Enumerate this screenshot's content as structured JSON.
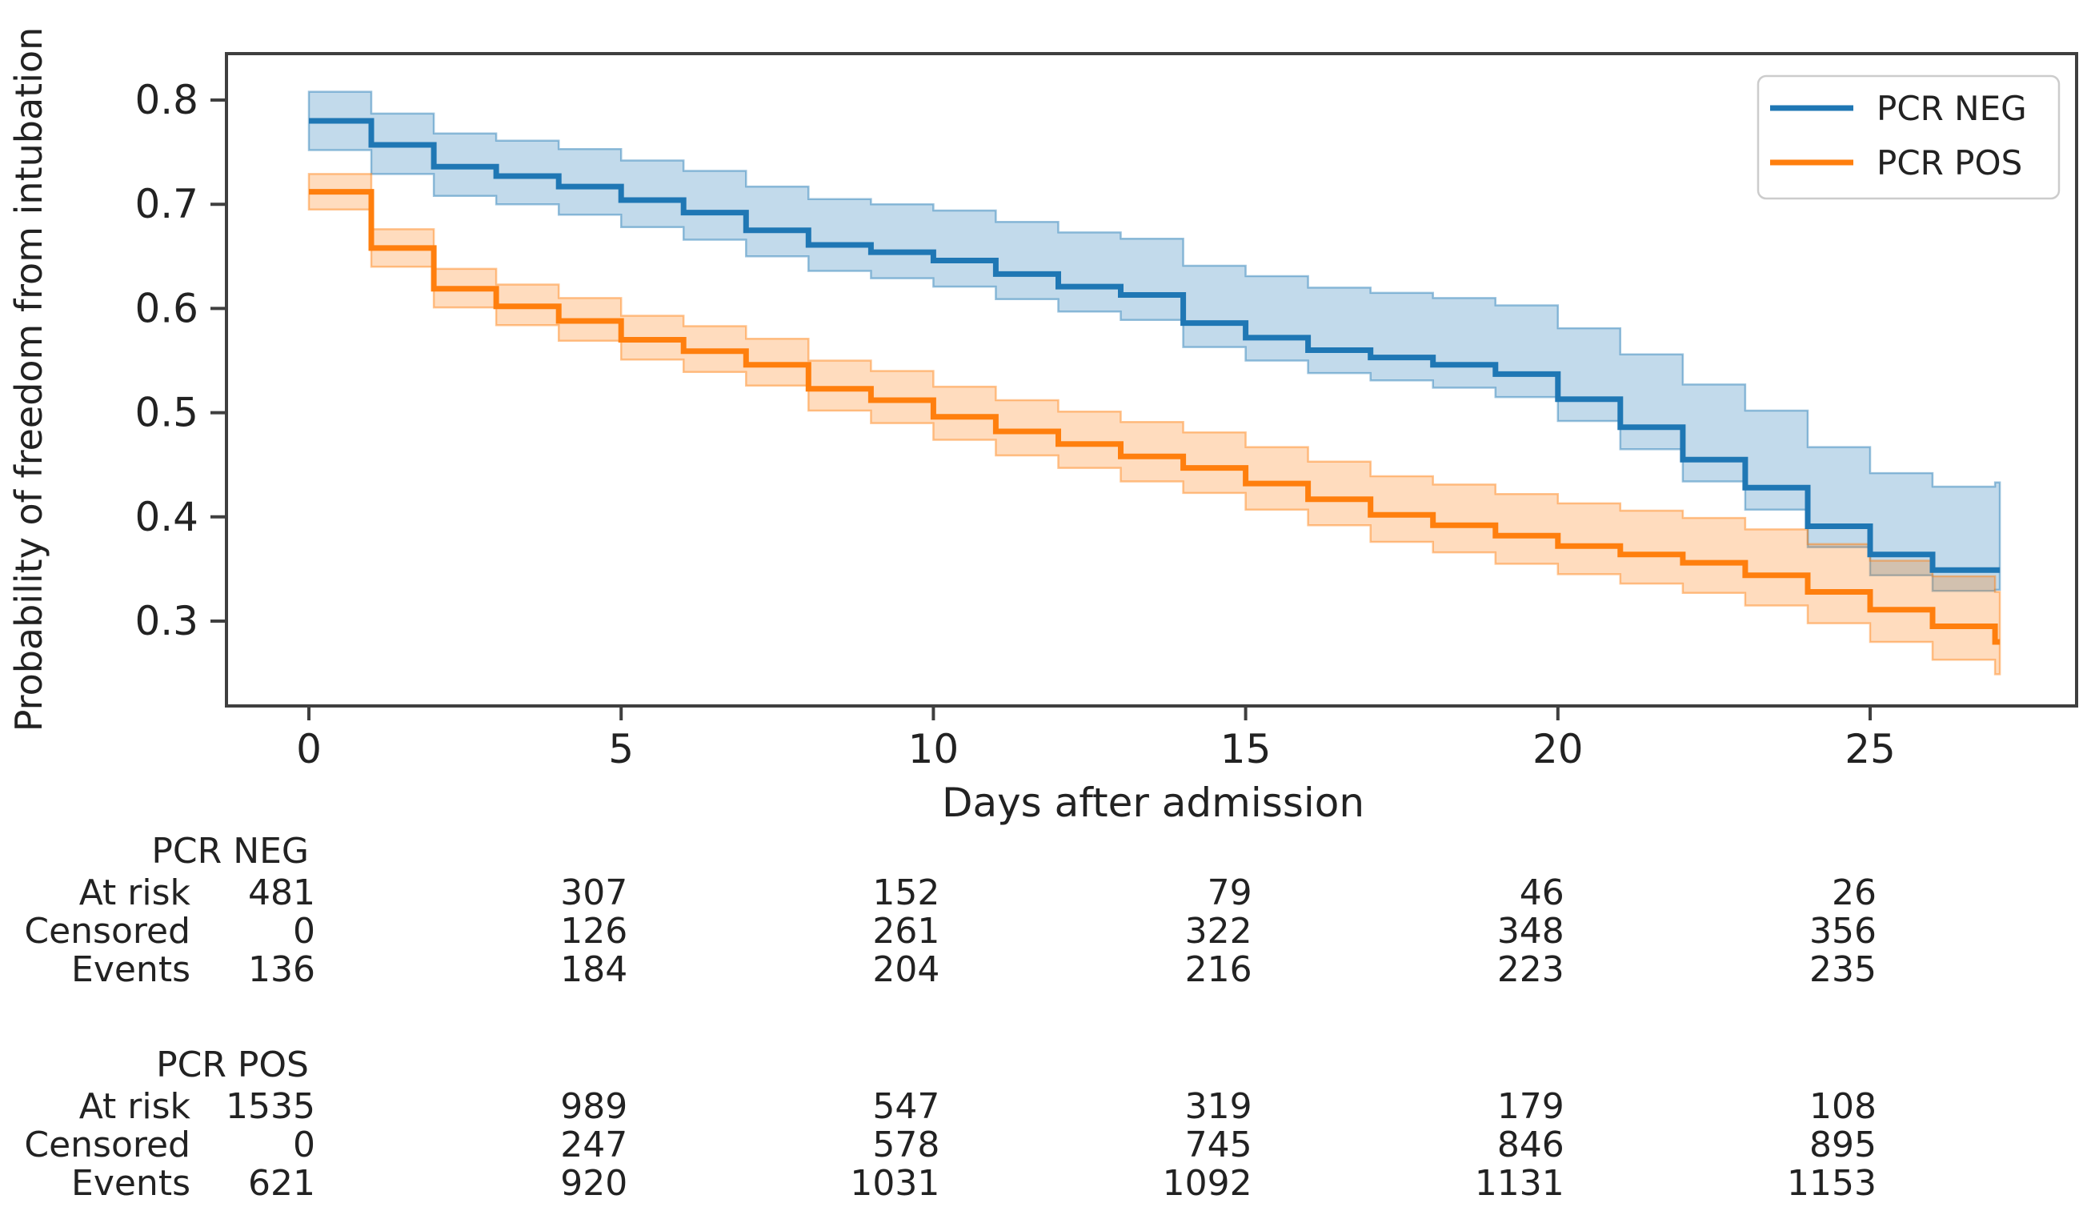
{
  "figure": {
    "background": "#ffffff",
    "y_axis": {
      "title": "Probability of freedom from intubation",
      "tick_labels": [
        "0.8",
        "0.7",
        "0.6",
        "0.5",
        "0.4",
        "0.3"
      ],
      "tick_values": [
        0.8,
        0.7,
        0.6,
        0.5,
        0.4,
        0.3
      ]
    },
    "x_axis": {
      "title": "Days after admission",
      "tick_labels": [
        "0",
        "5",
        "10",
        "15",
        "20",
        "25"
      ],
      "tick_values": [
        0,
        5,
        10,
        15,
        20,
        25
      ]
    },
    "legend": {
      "items": [
        {
          "label": "PCR NEG",
          "color": "#1f77b4"
        },
        {
          "label": "PCR POS",
          "color": "#ff7f0e"
        }
      ]
    }
  },
  "chart_data": {
    "type": "line",
    "subtype": "kaplan-meier-step",
    "title": "",
    "xlabel": "Days after admission",
    "ylabel": "Probability of freedom from intubation",
    "legend_position": "upper right",
    "grid": false,
    "x_ticks": [
      0,
      5,
      10,
      15,
      20,
      25
    ],
    "y_ticks": [
      0.8,
      0.7,
      0.6,
      0.5,
      0.4,
      0.3
    ],
    "xlim": [
      -1.3,
      28.3
    ],
    "ylim": [
      0.218,
      0.845
    ],
    "x": [
      0,
      1,
      2,
      3,
      4,
      5,
      6,
      7,
      8,
      9,
      10,
      11,
      12,
      13,
      14,
      15,
      16,
      17,
      18,
      19,
      20,
      21,
      22,
      23,
      24,
      25,
      26,
      27
    ],
    "series": [
      {
        "name": "PCR NEG",
        "color": "#1f77b4",
        "band_alpha": 0.27,
        "values": [
          0.78,
          0.757,
          0.736,
          0.727,
          0.717,
          0.704,
          0.692,
          0.675,
          0.661,
          0.654,
          0.646,
          0.633,
          0.621,
          0.613,
          0.586,
          0.572,
          0.56,
          0.553,
          0.546,
          0.537,
          0.513,
          0.486,
          0.455,
          0.428,
          0.391,
          0.364,
          0.349,
          0.349
        ],
        "ci_upper": [
          0.808,
          0.787,
          0.768,
          0.761,
          0.753,
          0.742,
          0.732,
          0.717,
          0.705,
          0.7,
          0.694,
          0.683,
          0.673,
          0.667,
          0.641,
          0.631,
          0.62,
          0.615,
          0.61,
          0.603,
          0.581,
          0.556,
          0.527,
          0.502,
          0.467,
          0.442,
          0.429,
          0.433
        ],
        "ci_lower": [
          0.752,
          0.729,
          0.708,
          0.7,
          0.69,
          0.678,
          0.666,
          0.65,
          0.636,
          0.629,
          0.621,
          0.609,
          0.597,
          0.589,
          0.563,
          0.55,
          0.538,
          0.531,
          0.524,
          0.515,
          0.492,
          0.465,
          0.434,
          0.407,
          0.371,
          0.344,
          0.329,
          0.33
        ]
      },
      {
        "name": "PCR POS",
        "color": "#ff7f0e",
        "band_alpha": 0.27,
        "values": [
          0.712,
          0.658,
          0.619,
          0.602,
          0.588,
          0.57,
          0.559,
          0.546,
          0.523,
          0.512,
          0.496,
          0.482,
          0.47,
          0.458,
          0.447,
          0.432,
          0.417,
          0.402,
          0.392,
          0.382,
          0.372,
          0.364,
          0.356,
          0.344,
          0.328,
          0.311,
          0.295,
          0.28
        ],
        "ci_upper": [
          0.729,
          0.676,
          0.638,
          0.623,
          0.61,
          0.593,
          0.583,
          0.571,
          0.55,
          0.54,
          0.525,
          0.512,
          0.501,
          0.491,
          0.481,
          0.467,
          0.453,
          0.439,
          0.431,
          0.422,
          0.413,
          0.406,
          0.399,
          0.388,
          0.374,
          0.358,
          0.343,
          0.328
        ],
        "ci_lower": [
          0.695,
          0.64,
          0.601,
          0.584,
          0.569,
          0.551,
          0.539,
          0.526,
          0.502,
          0.49,
          0.474,
          0.459,
          0.447,
          0.434,
          0.423,
          0.407,
          0.392,
          0.376,
          0.366,
          0.355,
          0.345,
          0.336,
          0.327,
          0.315,
          0.298,
          0.28,
          0.263,
          0.249
        ]
      }
    ]
  },
  "risk_table": {
    "tick_days": [
      0,
      5,
      10,
      15,
      20,
      25
    ],
    "groups": [
      {
        "name": "PCR NEG",
        "rows": [
          {
            "label": "At risk",
            "values": [
              481,
              307,
              152,
              79,
              46,
              26
            ]
          },
          {
            "label": "Censored",
            "values": [
              0,
              126,
              261,
              322,
              348,
              356
            ]
          },
          {
            "label": "Events",
            "values": [
              136,
              184,
              204,
              216,
              223,
              235
            ]
          }
        ]
      },
      {
        "name": "PCR POS",
        "rows": [
          {
            "label": "At risk",
            "values": [
              1535,
              989,
              547,
              319,
              179,
              108
            ]
          },
          {
            "label": "Censored",
            "values": [
              0,
              247,
              578,
              745,
              846,
              895
            ]
          },
          {
            "label": "Events",
            "values": [
              621,
              920,
              1031,
              1092,
              1131,
              1153
            ]
          }
        ]
      }
    ]
  },
  "colors": {
    "pcr_neg": "#1f77b4",
    "pcr_pos": "#ff7f0e",
    "spine": "#3f3f3f",
    "text": "#222222",
    "legend_border": "#cccccc"
  }
}
